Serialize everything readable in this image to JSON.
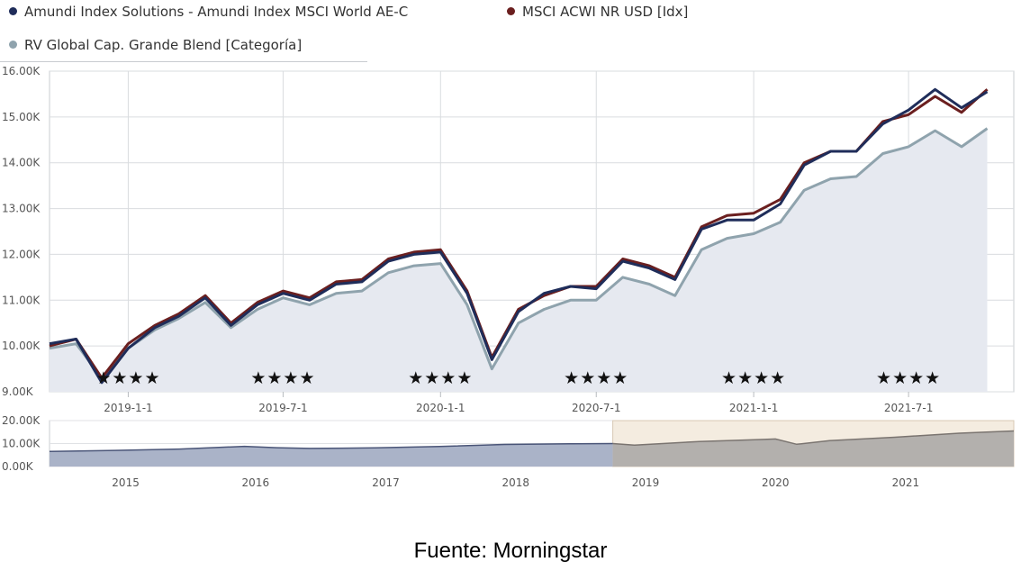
{
  "legend": {
    "items": [
      {
        "label": "Amundi Index Solutions - Amundi Index MSCI World AE-C",
        "color": "#1f2d5a"
      },
      {
        "label": "MSCI ACWI NR USD [Idx]",
        "color": "#6b1f1f"
      },
      {
        "label": "RV Global Cap. Grande Blend [Categoría]",
        "color": "#8fa3ad"
      }
    ]
  },
  "chart_data": [
    {
      "type": "line",
      "x_tick_labels": [
        "2019-1-1",
        "2019-7-1",
        "2020-1-1",
        "2020-7-1",
        "2021-1-1",
        "2021-7-1"
      ],
      "y_tick_labels": [
        "9.00K",
        "10.00K",
        "11.00K",
        "12.00K",
        "13.00K",
        "14.00K",
        "15.00K",
        "16.00K"
      ],
      "ylim": [
        9000,
        16000
      ],
      "x_range": [
        "2018-10-01",
        "2021-11-01"
      ],
      "grid": true,
      "legend_position": "top-left",
      "rating_stars": [
        "★★★★",
        "★★★★",
        "★★★★",
        "★★★★",
        "★★★★",
        "★★★★"
      ],
      "series": [
        {
          "name": "Amundi Index Solutions - Amundi Index MSCI World AE-C",
          "color": "#1f2d5a",
          "points": [
            [
              "2018-10-01",
              10050
            ],
            [
              "2018-11-01",
              10150
            ],
            [
              "2018-12-01",
              9200
            ],
            [
              "2019-01-01",
              9950
            ],
            [
              "2019-02-01",
              10400
            ],
            [
              "2019-03-01",
              10650
            ],
            [
              "2019-04-01",
              11050
            ],
            [
              "2019-05-01",
              10450
            ],
            [
              "2019-06-01",
              10900
            ],
            [
              "2019-07-01",
              11150
            ],
            [
              "2019-08-01",
              11000
            ],
            [
              "2019-09-01",
              11350
            ],
            [
              "2019-10-01",
              11400
            ],
            [
              "2019-11-01",
              11850
            ],
            [
              "2019-12-01",
              12000
            ],
            [
              "2020-01-01",
              12050
            ],
            [
              "2020-02-01",
              11150
            ],
            [
              "2020-03-01",
              9700
            ],
            [
              "2020-04-01",
              10750
            ],
            [
              "2020-05-01",
              11150
            ],
            [
              "2020-06-01",
              11300
            ],
            [
              "2020-07-01",
              11250
            ],
            [
              "2020-08-01",
              11850
            ],
            [
              "2020-09-01",
              11700
            ],
            [
              "2020-10-01",
              11450
            ],
            [
              "2020-11-01",
              12550
            ],
            [
              "2020-12-01",
              12750
            ],
            [
              "2021-01-01",
              12750
            ],
            [
              "2021-02-01",
              13100
            ],
            [
              "2021-03-01",
              13950
            ],
            [
              "2021-04-01",
              14250
            ],
            [
              "2021-05-01",
              14250
            ],
            [
              "2021-06-01",
              14850
            ],
            [
              "2021-07-01",
              15150
            ],
            [
              "2021-08-01",
              15600
            ],
            [
              "2021-09-01",
              15200
            ],
            [
              "2021-10-01",
              15550
            ]
          ]
        },
        {
          "name": "MSCI ACWI NR USD [Idx]",
          "color": "#6b1f1f",
          "points": [
            [
              "2018-10-01",
              10000
            ],
            [
              "2018-11-01",
              10150
            ],
            [
              "2018-12-01",
              9300
            ],
            [
              "2019-01-01",
              10050
            ],
            [
              "2019-02-01",
              10450
            ],
            [
              "2019-03-01",
              10700
            ],
            [
              "2019-04-01",
              11100
            ],
            [
              "2019-05-01",
              10500
            ],
            [
              "2019-06-01",
              10950
            ],
            [
              "2019-07-01",
              11200
            ],
            [
              "2019-08-01",
              11050
            ],
            [
              "2019-09-01",
              11400
            ],
            [
              "2019-10-01",
              11450
            ],
            [
              "2019-11-01",
              11900
            ],
            [
              "2019-12-01",
              12050
            ],
            [
              "2020-01-01",
              12100
            ],
            [
              "2020-02-01",
              11200
            ],
            [
              "2020-03-01",
              9750
            ],
            [
              "2020-04-01",
              10800
            ],
            [
              "2020-05-01",
              11100
            ],
            [
              "2020-06-01",
              11300
            ],
            [
              "2020-07-01",
              11300
            ],
            [
              "2020-08-01",
              11900
            ],
            [
              "2020-09-01",
              11750
            ],
            [
              "2020-10-01",
              11500
            ],
            [
              "2020-11-01",
              12600
            ],
            [
              "2020-12-01",
              12850
            ],
            [
              "2021-01-01",
              12900
            ],
            [
              "2021-02-01",
              13200
            ],
            [
              "2021-03-01",
              14000
            ],
            [
              "2021-04-01",
              14250
            ],
            [
              "2021-05-01",
              14250
            ],
            [
              "2021-06-01",
              14900
            ],
            [
              "2021-07-01",
              15050
            ],
            [
              "2021-08-01",
              15450
            ],
            [
              "2021-09-01",
              15100
            ],
            [
              "2021-10-01",
              15600
            ]
          ]
        },
        {
          "name": "RV Global Cap. Grande Blend [Categoría]",
          "color": "#8fa3ad",
          "points": [
            [
              "2018-10-01",
              9950
            ],
            [
              "2018-11-01",
              10050
            ],
            [
              "2018-12-01",
              9300
            ],
            [
              "2019-01-01",
              9950
            ],
            [
              "2019-02-01",
              10350
            ],
            [
              "2019-03-01",
              10600
            ],
            [
              "2019-04-01",
              10950
            ],
            [
              "2019-05-01",
              10400
            ],
            [
              "2019-06-01",
              10800
            ],
            [
              "2019-07-01",
              11050
            ],
            [
              "2019-08-01",
              10900
            ],
            [
              "2019-09-01",
              11150
            ],
            [
              "2019-10-01",
              11200
            ],
            [
              "2019-11-01",
              11600
            ],
            [
              "2019-12-01",
              11750
            ],
            [
              "2020-01-01",
              11800
            ],
            [
              "2020-02-01",
              10900
            ],
            [
              "2020-03-01",
              9500
            ],
            [
              "2020-04-01",
              10500
            ],
            [
              "2020-05-01",
              10800
            ],
            [
              "2020-06-01",
              11000
            ],
            [
              "2020-07-01",
              11000
            ],
            [
              "2020-08-01",
              11500
            ],
            [
              "2020-09-01",
              11350
            ],
            [
              "2020-10-01",
              11100
            ],
            [
              "2020-11-01",
              12100
            ],
            [
              "2020-12-01",
              12350
            ],
            [
              "2021-01-01",
              12450
            ],
            [
              "2021-02-01",
              12700
            ],
            [
              "2021-03-01",
              13400
            ],
            [
              "2021-04-01",
              13650
            ],
            [
              "2021-05-01",
              13700
            ],
            [
              "2021-06-01",
              14200
            ],
            [
              "2021-07-01",
              14350
            ],
            [
              "2021-08-01",
              14700
            ],
            [
              "2021-09-01",
              14350
            ],
            [
              "2021-10-01",
              14750
            ]
          ]
        }
      ]
    },
    {
      "type": "area",
      "x_tick_labels": [
        "2015",
        "2016",
        "2017",
        "2018",
        "2019",
        "2020",
        "2021"
      ],
      "y_tick_labels": [
        "0.00K",
        "10.00K",
        "20.00K"
      ],
      "ylim": [
        0,
        20000
      ],
      "x_range": [
        "2014-06-01",
        "2021-11-01"
      ],
      "selected_range": [
        "2018-10-01",
        "2021-11-01"
      ],
      "series": [
        {
          "points": [
            [
              "2014-06-01",
              6600
            ],
            [
              "2014-12-01",
              7000
            ],
            [
              "2015-06-01",
              7600
            ],
            [
              "2015-12-01",
              8800
            ],
            [
              "2016-03-01",
              8200
            ],
            [
              "2016-06-01",
              7900
            ],
            [
              "2016-12-01",
              8100
            ],
            [
              "2017-06-01",
              8700
            ],
            [
              "2017-12-01",
              9600
            ],
            [
              "2018-06-01",
              9900
            ],
            [
              "2018-10-01",
              10000
            ],
            [
              "2018-12-01",
              9300
            ],
            [
              "2019-06-01",
              10900
            ],
            [
              "2019-12-01",
              11800
            ],
            [
              "2020-01-01",
              12000
            ],
            [
              "2020-03-01",
              9700
            ],
            [
              "2020-06-01",
              11300
            ],
            [
              "2020-12-01",
              12750
            ],
            [
              "2021-06-01",
              14500
            ],
            [
              "2021-11-01",
              15500
            ]
          ]
        }
      ]
    }
  ],
  "footer": {
    "source": "Fuente: Morningstar"
  }
}
